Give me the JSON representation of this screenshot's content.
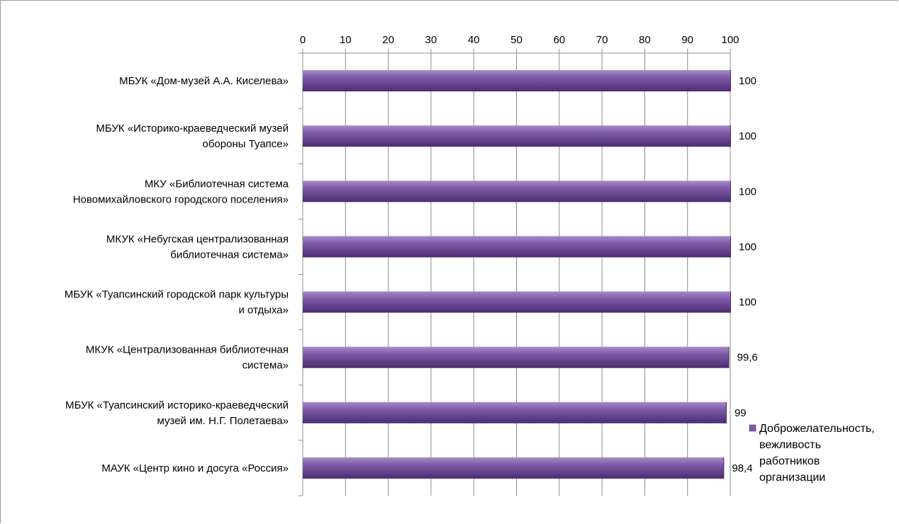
{
  "chart_data": {
    "type": "bar",
    "orientation": "horizontal",
    "categories": [
      [
        "МБУК «Дом-музей А.А. Киселева»"
      ],
      [
        "МБУК «Историко-краеведческий музей",
        "обороны Туапсе»"
      ],
      [
        "МКУ «Библиотечная система",
        "Новомихайловского городского поселения»"
      ],
      [
        "МКУК «Небугская централизованная",
        "библиотечная система»"
      ],
      [
        "МБУК «Туапсинский городской парк культуры",
        "и отдыха»"
      ],
      [
        "МКУК «Централизованная библиотечная",
        "система»"
      ],
      [
        "МБУК «Туапсинский историко-краеведческий",
        "музей им. Н.Г. Полетаева»"
      ],
      [
        "МАУК «Центр кино и досуга «Россия»"
      ]
    ],
    "series": [
      {
        "name": "Доброжелательность, вежливость работников организации",
        "values": [
          100,
          100,
          100,
          100,
          100,
          99.6,
          99,
          98.4
        ],
        "labels": [
          "100",
          "100",
          "100",
          "100",
          "100",
          "99,6",
          "99",
          "98,4"
        ]
      }
    ],
    "xlim": [
      0,
      100
    ],
    "xticks": [
      0,
      10,
      20,
      30,
      40,
      50,
      60,
      70,
      80,
      90,
      100
    ],
    "x_axis_position": "top",
    "grid": "vertical",
    "legend": {
      "position": "right",
      "lines": [
        "Доброжелательность,",
        "вежливость",
        "работников",
        "организации"
      ]
    },
    "colors": {
      "bar_light": "#a58bc8",
      "bar_mid": "#7d5aa8",
      "bar_dark": "#4b2d70",
      "gridline": "#8c8c8c",
      "axis": "#8c8c8c"
    }
  }
}
